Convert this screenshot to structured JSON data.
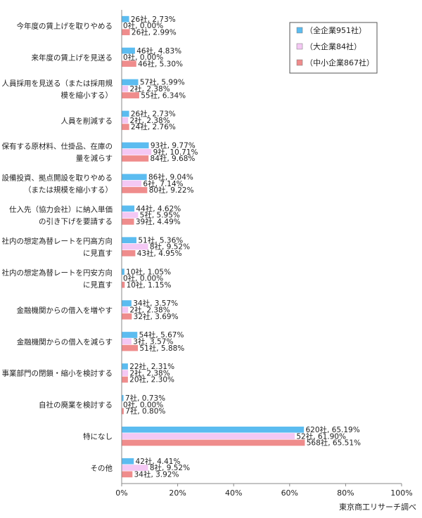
{
  "chart_data": {
    "type": "bar",
    "orientation": "horizontal",
    "categories": [
      [
        "今年度の賃上げを取りやめる"
      ],
      [
        "来年度の賃上げを見送る"
      ],
      [
        "人員採用を見送る（または採用規",
        "模を縮小する）"
      ],
      [
        "人員を削減する"
      ],
      [
        "保有する原材料、仕掛品、在庫の",
        "量を減らす"
      ],
      [
        "設備投資、拠点開設を取りやめる",
        "（または規模を縮小する）"
      ],
      [
        "仕入先（協力会社）に納入単価",
        "の引き下げを要請する"
      ],
      [
        "社内の想定為替レートを円高方向",
        "に見直す"
      ],
      [
        "社内の想定為替レートを円安方向",
        "に見直す"
      ],
      [
        "金融機関からの借入を増やす"
      ],
      [
        "金融機関からの借入を減らす"
      ],
      [
        "事業部門の閉鎖・縮小を検討する"
      ],
      [
        "自社の廃業を検討する"
      ],
      [
        "特になし"
      ],
      [
        "その他"
      ]
    ],
    "series": [
      {
        "name": "（全企業951社）",
        "color": "#5bbcf0",
        "values": [
          2.73,
          4.83,
          5.99,
          2.73,
          9.77,
          9.04,
          4.62,
          5.36,
          1.05,
          3.57,
          5.67,
          2.31,
          0.73,
          65.19,
          4.41
        ],
        "labels": [
          "26社, 2.73%",
          "46社, 4.83%",
          "57社, 5.99%",
          "26社, 2.73%",
          "93社, 9.77%",
          "86社, 9.04%",
          "44社, 4.62%",
          "51社, 5.36%",
          "10社, 1.05%",
          "34社, 3.57%",
          "54社, 5.67%",
          "22社, 2.31%",
          "7社, 0.73%",
          "620社, 65.19%",
          "42社, 4.41%"
        ]
      },
      {
        "name": "（大企業84社）",
        "color": "#f4c8f4",
        "values": [
          0.0,
          0.0,
          2.38,
          2.38,
          10.71,
          7.14,
          5.95,
          9.52,
          0.0,
          2.38,
          3.57,
          2.38,
          0.0,
          61.9,
          9.52
        ],
        "labels": [
          "0社, 0.00%",
          "0社, 0.00%",
          "2社, 2.38%",
          "2社, 2.38%",
          "9社, 10.71%",
          "6社, 7.14%",
          "5社, 5.95%",
          "8社, 9.52%",
          "0社, 0.00%",
          "2社, 2.38%",
          "3社, 3.57%",
          "2社, 2.38%",
          "0社, 0.00%",
          "52社, 61.90%",
          "8社, 9.52%"
        ]
      },
      {
        "name": "（中小企業867社）",
        "color": "#ef8c8c",
        "values": [
          2.99,
          5.3,
          6.34,
          2.76,
          9.68,
          9.22,
          4.49,
          4.95,
          1.15,
          3.69,
          5.88,
          2.3,
          0.8,
          65.51,
          3.92
        ],
        "labels": [
          "26社, 2.99%",
          "46社, 5.30%",
          "55社, 6.34%",
          "24社, 2.76%",
          "84社, 9.68%",
          "80社, 9.22%",
          "39社, 4.49%",
          "43社, 4.95%",
          "10社, 1.15%",
          "32社, 3.69%",
          "51社, 5.88%",
          "20社, 2.30%",
          "7社, 0.80%",
          "568社, 65.51%",
          "34社, 3.92%"
        ]
      }
    ],
    "xlim": [
      0,
      100
    ],
    "xticks": [
      "0%",
      "20%",
      "40%",
      "60%",
      "80%",
      "100%"
    ],
    "legend": "top-right",
    "grid": false,
    "source": "東京商工リサーチ調べ"
  }
}
